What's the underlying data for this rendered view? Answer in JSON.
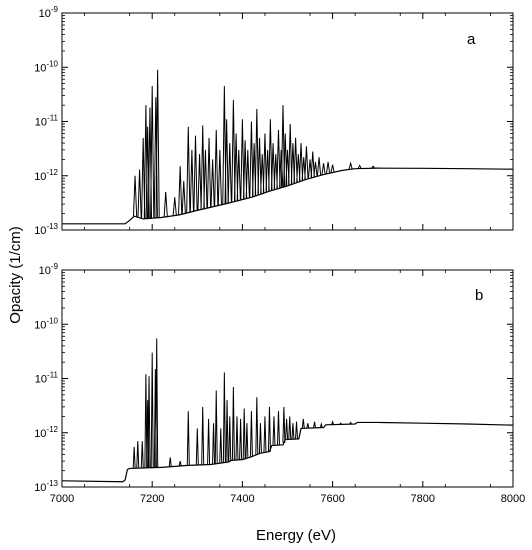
{
  "figure": {
    "xlabel": "Energy (eV)",
    "ylabel": "Opacity (1/cm)"
  },
  "chart_data": [
    {
      "type": "line",
      "panel_label": "a",
      "xlim": [
        7000,
        8000
      ],
      "ylim_exponents": [
        -13,
        -9
      ],
      "yscale": "log",
      "x_ticks": [
        "7000",
        "7200",
        "7400",
        "7600",
        "7800",
        "8000"
      ],
      "y_ticks": [
        {
          "base": "10",
          "exp": "-13"
        },
        {
          "base": "10",
          "exp": "-12"
        },
        {
          "base": "10",
          "exp": "-11"
        },
        {
          "base": "10",
          "exp": "-10"
        },
        {
          "base": "10",
          "exp": "-9"
        }
      ],
      "grid": false,
      "color": "#000000",
      "baseline": [
        [
          7000,
          1.3e-13
        ],
        [
          7140,
          1.3e-13
        ],
        [
          7150,
          1.5e-13
        ],
        [
          7160,
          1.8e-13
        ],
        [
          7180,
          1.6e-13
        ],
        [
          7220,
          1.7e-13
        ],
        [
          7260,
          1.9e-13
        ],
        [
          7300,
          2.3e-13
        ],
        [
          7360,
          3e-13
        ],
        [
          7420,
          4e-13
        ],
        [
          7460,
          5.2e-13
        ],
        [
          7500,
          6.5e-13
        ],
        [
          7540,
          8.5e-13
        ],
        [
          7580,
          1.05e-12
        ],
        [
          7620,
          1.25e-12
        ],
        [
          7650,
          1.35e-12
        ],
        [
          7700,
          1.38e-12
        ],
        [
          7800,
          1.37e-12
        ],
        [
          7900,
          1.35e-12
        ],
        [
          8000,
          1.32e-12
        ]
      ],
      "lines": [
        [
          7162,
          1e-12
        ],
        [
          7172,
          1.3e-12
        ],
        [
          7180,
          5e-12
        ],
        [
          7186,
          2e-11
        ],
        [
          7190,
          8e-12
        ],
        [
          7195,
          1.8e-11
        ],
        [
          7200,
          4.5e-11
        ],
        [
          7208,
          2.8e-11
        ],
        [
          7212,
          9e-11
        ],
        [
          7230,
          5e-13
        ],
        [
          7250,
          4e-13
        ],
        [
          7262,
          1.5e-12
        ],
        [
          7270,
          8e-13
        ],
        [
          7280,
          8e-12
        ],
        [
          7288,
          3e-12
        ],
        [
          7296,
          5.5e-12
        ],
        [
          7305,
          2.5e-12
        ],
        [
          7312,
          8.5e-12
        ],
        [
          7318,
          3e-12
        ],
        [
          7326,
          5e-12
        ],
        [
          7334,
          2e-12
        ],
        [
          7342,
          7e-12
        ],
        [
          7350,
          3e-12
        ],
        [
          7360,
          4.5e-11
        ],
        [
          7365,
          1.1e-11
        ],
        [
          7372,
          4e-12
        ],
        [
          7380,
          2.5e-11
        ],
        [
          7386,
          6e-12
        ],
        [
          7392,
          3e-12
        ],
        [
          7400,
          1.1e-11
        ],
        [
          7406,
          4.5e-12
        ],
        [
          7412,
          3e-12
        ],
        [
          7420,
          1e-11
        ],
        [
          7426,
          4e-12
        ],
        [
          7432,
          1.7e-11
        ],
        [
          7438,
          5e-12
        ],
        [
          7444,
          2.5e-12
        ],
        [
          7450,
          6e-12
        ],
        [
          7456,
          3e-12
        ],
        [
          7462,
          1.1e-11
        ],
        [
          7468,
          4e-12
        ],
        [
          7474,
          2.5e-12
        ],
        [
          7480,
          7e-12
        ],
        [
          7486,
          3e-12
        ],
        [
          7490,
          2e-11
        ],
        [
          7495,
          6e-12
        ],
        [
          7500,
          3e-12
        ],
        [
          7506,
          9e-12
        ],
        [
          7512,
          4e-12
        ],
        [
          7518,
          5e-12
        ],
        [
          7524,
          2.5e-12
        ],
        [
          7530,
          4e-12
        ],
        [
          7536,
          2.2e-12
        ],
        [
          7542,
          3.5e-12
        ],
        [
          7550,
          2e-12
        ],
        [
          7556,
          2.8e-12
        ],
        [
          7562,
          1.8e-12
        ],
        [
          7570,
          2.2e-12
        ],
        [
          7580,
          1.7e-12
        ],
        [
          7590,
          1.8e-12
        ],
        [
          7600,
          1.6e-12
        ],
        [
          7640,
          1.7e-12
        ],
        [
          7660,
          1.55e-12
        ],
        [
          7690,
          1.5e-12
        ]
      ]
    },
    {
      "type": "line",
      "panel_label": "b",
      "xlim": [
        7000,
        8000
      ],
      "ylim_exponents": [
        -13,
        -9
      ],
      "yscale": "log",
      "x_ticks": [
        "7000",
        "7200",
        "7400",
        "7600",
        "7800",
        "8000"
      ],
      "y_ticks": [
        {
          "base": "10",
          "exp": "-13"
        },
        {
          "base": "10",
          "exp": "-12"
        },
        {
          "base": "10",
          "exp": "-11"
        },
        {
          "base": "10",
          "exp": "-10"
        },
        {
          "base": "10",
          "exp": "-9"
        }
      ],
      "grid": false,
      "color": "#000000",
      "baseline": [
        [
          7000,
          1.3e-13
        ],
        [
          7135,
          1.25e-13
        ],
        [
          7140,
          1.35e-13
        ],
        [
          7145,
          2.1e-13
        ],
        [
          7150,
          2.2e-13
        ],
        [
          7220,
          2.3e-13
        ],
        [
          7280,
          2.5e-13
        ],
        [
          7330,
          2.6e-13
        ],
        [
          7370,
          2.9e-13
        ],
        [
          7375,
          3.1e-13
        ],
        [
          7400,
          3.2e-13
        ],
        [
          7420,
          3.6e-13
        ],
        [
          7440,
          4.2e-13
        ],
        [
          7460,
          4.5e-13
        ],
        [
          7465,
          5.8e-13
        ],
        [
          7490,
          6e-13
        ],
        [
          7495,
          7.5e-13
        ],
        [
          7525,
          7.7e-13
        ],
        [
          7530,
          1.2e-12
        ],
        [
          7580,
          1.25e-12
        ],
        [
          7585,
          1.4e-12
        ],
        [
          7650,
          1.45e-12
        ],
        [
          7655,
          1.55e-12
        ],
        [
          7700,
          1.55e-12
        ],
        [
          7800,
          1.5e-12
        ],
        [
          7900,
          1.45e-12
        ],
        [
          8000,
          1.38e-12
        ]
      ],
      "lines": [
        [
          7160,
          5.5e-13
        ],
        [
          7168,
          7e-13
        ],
        [
          7178,
          7e-13
        ],
        [
          7186,
          1.2e-11
        ],
        [
          7190,
          4e-12
        ],
        [
          7193,
          1.1e-11
        ],
        [
          7200,
          3e-11
        ],
        [
          7207,
          1.5e-11
        ],
        [
          7210,
          5.5e-11
        ],
        [
          7240,
          3.5e-13
        ],
        [
          7262,
          3e-13
        ],
        [
          7280,
          2.5e-12
        ],
        [
          7300,
          1.2e-12
        ],
        [
          7312,
          3e-12
        ],
        [
          7325,
          1.8e-12
        ],
        [
          7336,
          1.5e-12
        ],
        [
          7342,
          6e-12
        ],
        [
          7352,
          1.2e-12
        ],
        [
          7360,
          1.3e-11
        ],
        [
          7366,
          4e-12
        ],
        [
          7372,
          2e-12
        ],
        [
          7380,
          7e-12
        ],
        [
          7388,
          2e-12
        ],
        [
          7396,
          1.8e-12
        ],
        [
          7404,
          2.8e-12
        ],
        [
          7410,
          1.5e-12
        ],
        [
          7420,
          2.5e-12
        ],
        [
          7432,
          4.5e-12
        ],
        [
          7440,
          1.5e-12
        ],
        [
          7450,
          2e-12
        ],
        [
          7460,
          3e-12
        ],
        [
          7470,
          2e-12
        ],
        [
          7480,
          2.5e-12
        ],
        [
          7492,
          3e-12
        ],
        [
          7498,
          1.8e-12
        ],
        [
          7505,
          2e-12
        ],
        [
          7512,
          1.5e-12
        ],
        [
          7520,
          1.6e-12
        ],
        [
          7535,
          1.8e-12
        ],
        [
          7545,
          1.5e-12
        ],
        [
          7560,
          1.6e-12
        ],
        [
          7575,
          1.45e-12
        ],
        [
          7600,
          1.6e-12
        ],
        [
          7618,
          1.5e-12
        ],
        [
          7640,
          1.55e-12
        ]
      ]
    }
  ]
}
